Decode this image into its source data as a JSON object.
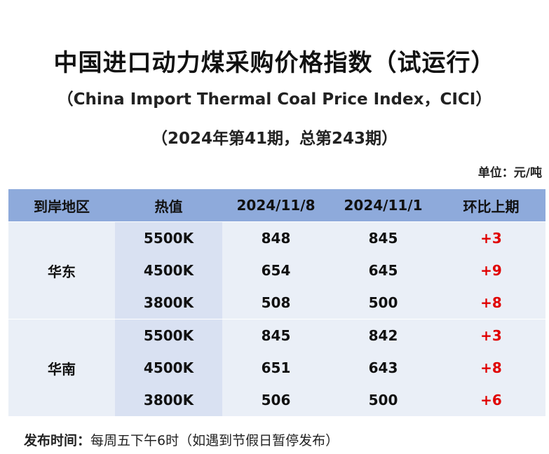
{
  "title": "中国进口动力煤采购价格指数（试运行）",
  "subtitle": "（China Import Thermal Coal Price Index，CICI）",
  "issue": "（2024年第41期，总第243期）",
  "unit": "单位：元/吨",
  "table": {
    "headers": [
      "到岸地区",
      "热值",
      "2024/11/8",
      "2024/11/1",
      "环比上期"
    ],
    "groups": [
      {
        "region": "华东",
        "rows": [
          {
            "heat": "5500K",
            "cur": "848",
            "prev": "845",
            "chg": "+3"
          },
          {
            "heat": "4500K",
            "cur": "654",
            "prev": "645",
            "chg": "+9"
          },
          {
            "heat": "3800K",
            "cur": "508",
            "prev": "500",
            "chg": "+8"
          }
        ]
      },
      {
        "region": "华南",
        "rows": [
          {
            "heat": "5500K",
            "cur": "845",
            "prev": "842",
            "chg": "+3"
          },
          {
            "heat": "4500K",
            "cur": "651",
            "prev": "643",
            "chg": "+8"
          },
          {
            "heat": "3800K",
            "cur": "506",
            "prev": "500",
            "chg": "+6"
          }
        ]
      }
    ]
  },
  "footer": {
    "label": "发布时间：",
    "text": "每周五下午6时（如遇到节假日暂停发布）"
  },
  "colors": {
    "header_bg": "#8eaadb",
    "row_bg": "#eaeff7",
    "heat_bg": "#d9e1f2",
    "change_color": "#e00000"
  }
}
